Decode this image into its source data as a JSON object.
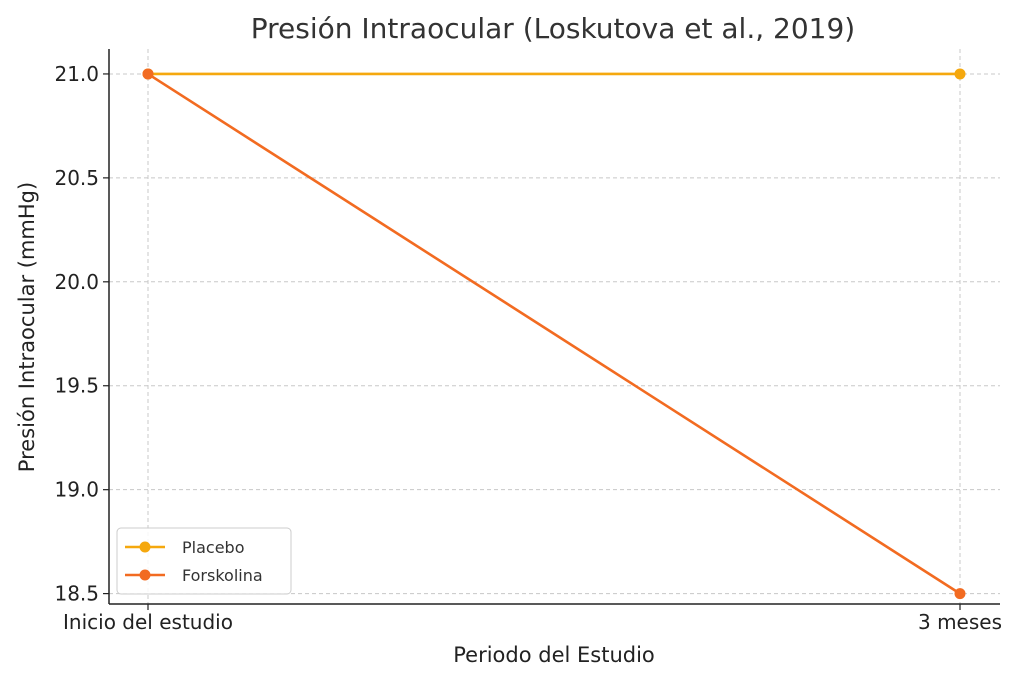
{
  "chart_data": {
    "type": "line",
    "title": "Presión Intraocular (Loskutova et al., 2019)",
    "xlabel": "Periodo del Estudio",
    "ylabel": "Presión Intraocular (mmHg)",
    "categories": [
      "Inicio del estudio",
      "3 meses"
    ],
    "ylim": [
      18.45,
      21.12
    ],
    "yticks": [
      "18.5",
      "19.0",
      "19.5",
      "20.0",
      "20.5",
      "21.0"
    ],
    "grid": true,
    "legend_position": "lower-left",
    "series": [
      {
        "name": "Placebo",
        "values": [
          21.0,
          21.0
        ],
        "color": "#F5A80E"
      },
      {
        "name": "Forskolina",
        "values": [
          21.0,
          18.5
        ],
        "color": "#F26B21"
      }
    ]
  }
}
